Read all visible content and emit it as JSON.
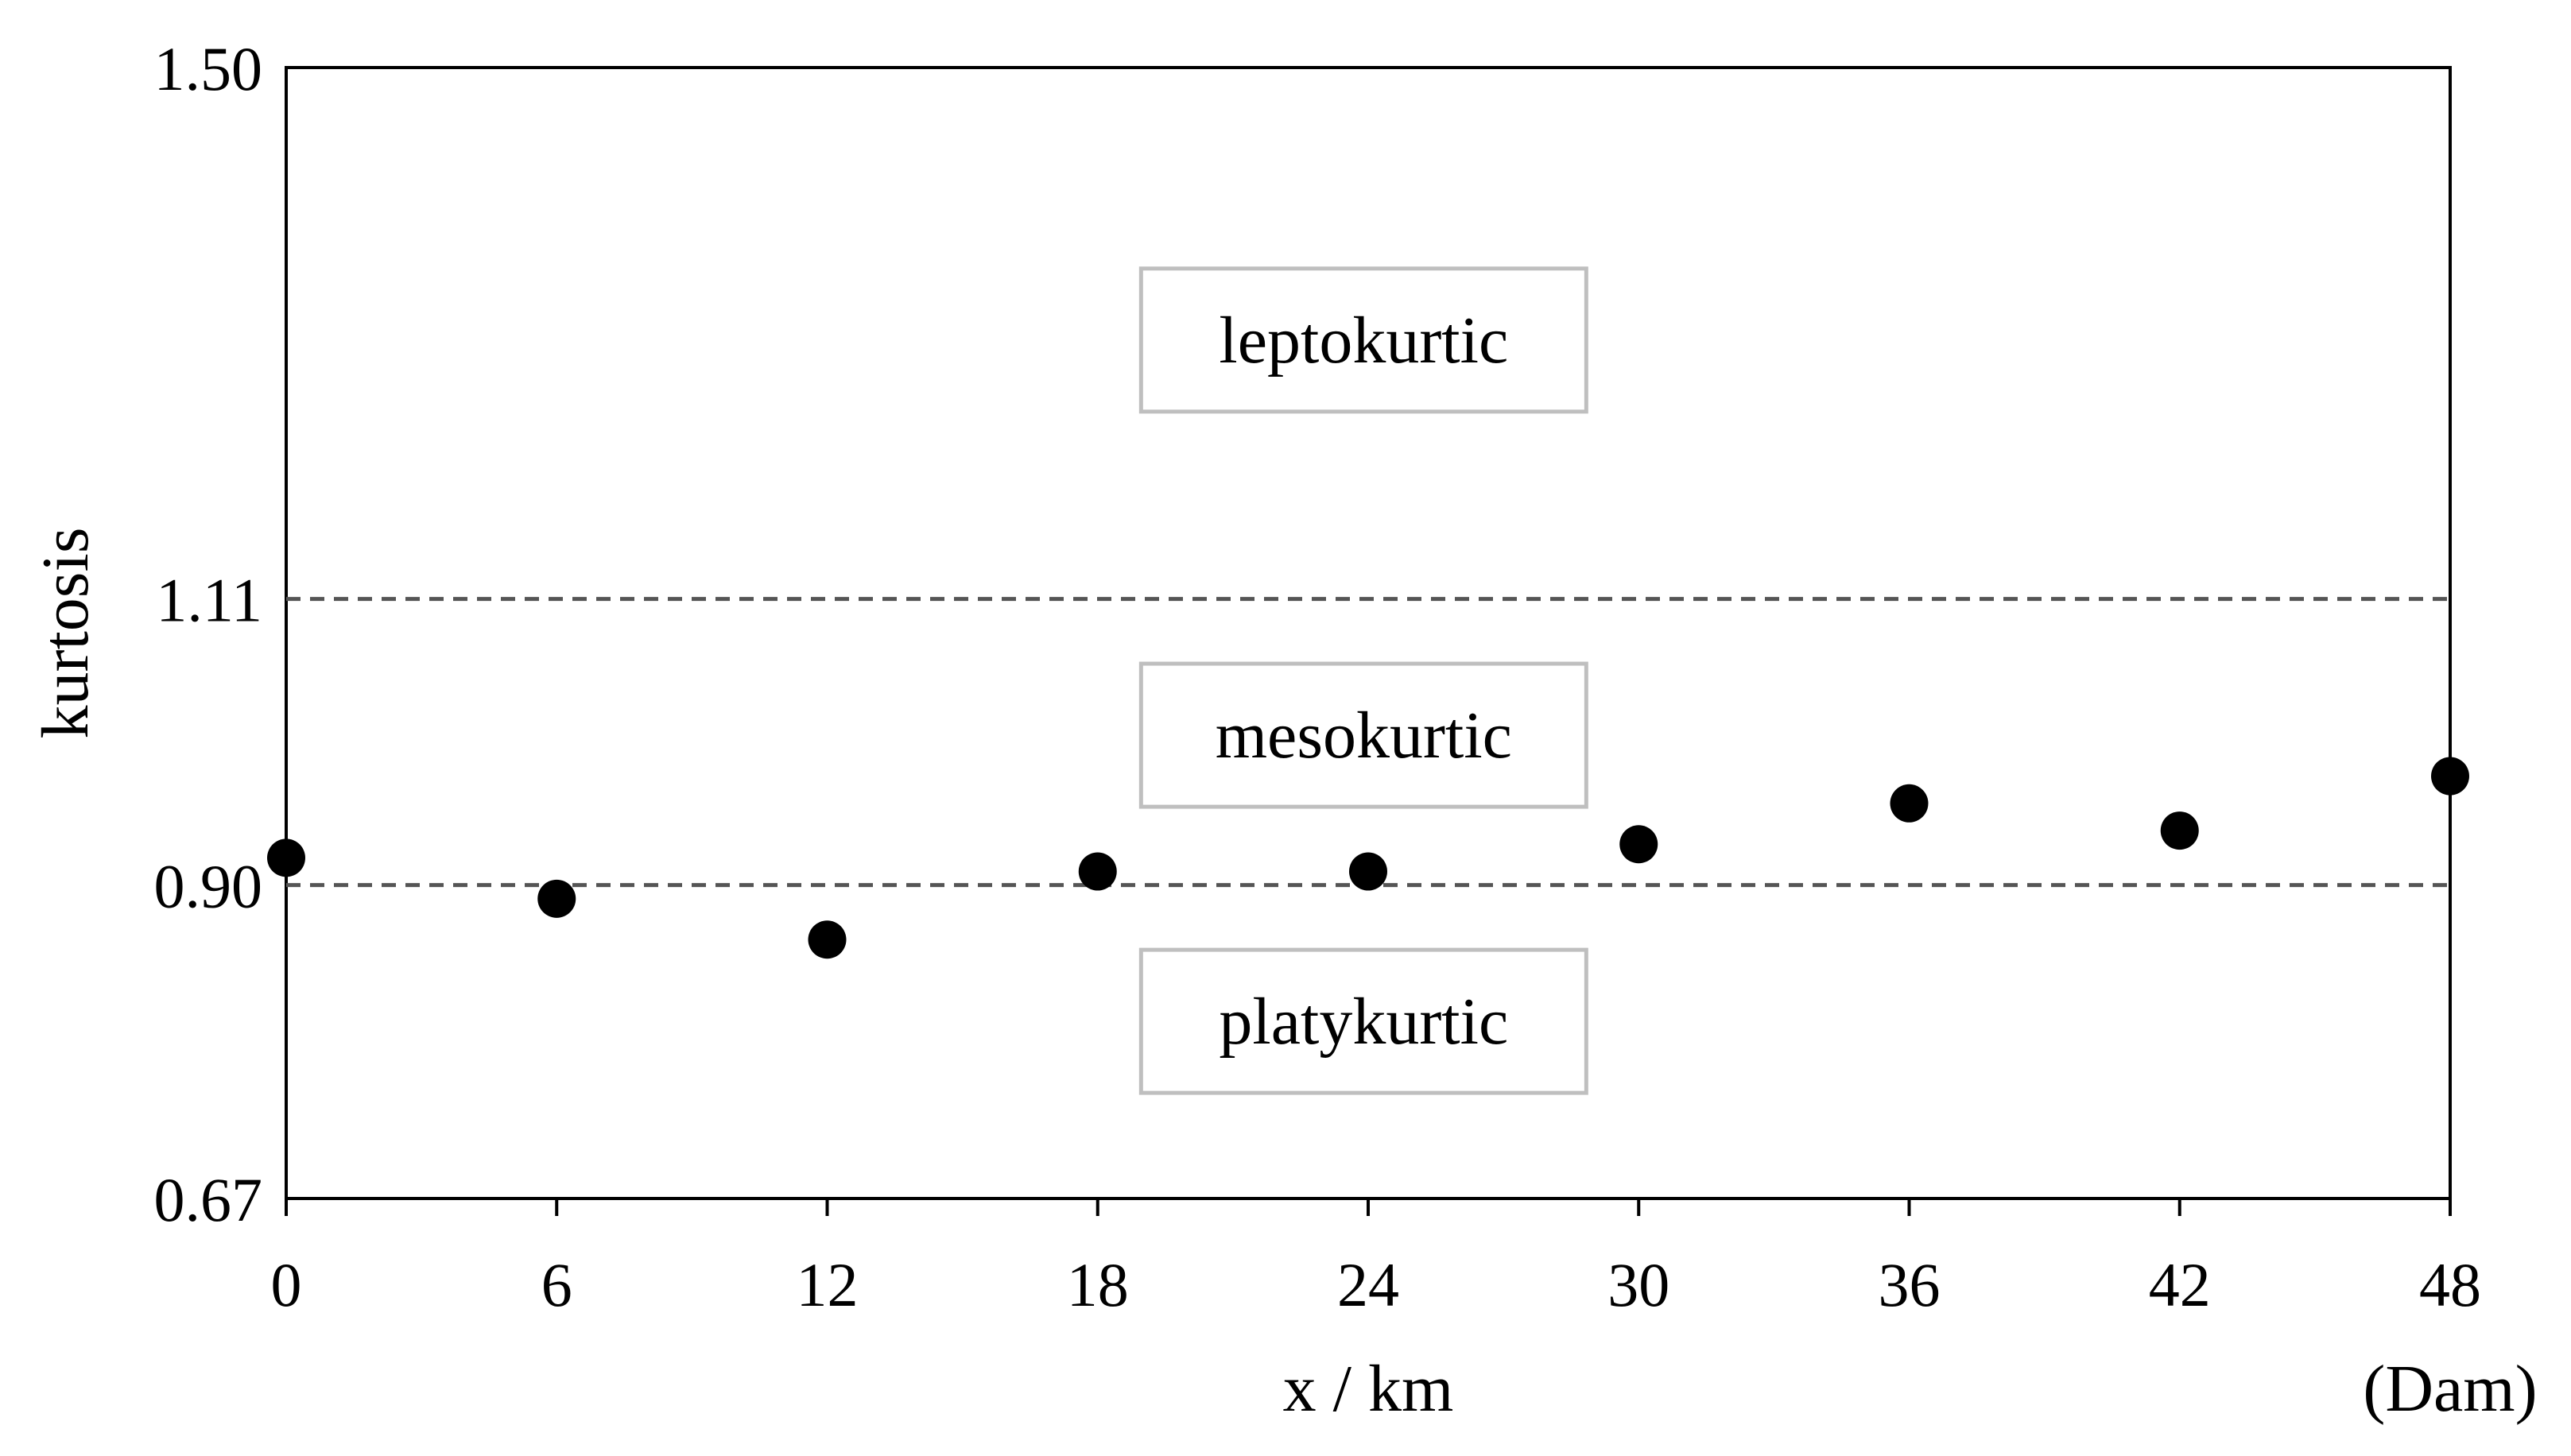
{
  "chart_data": {
    "type": "scatter",
    "xlabel": "x / km",
    "ylabel": "kurtosis",
    "x_note": "(Dam)",
    "xlim": [
      0,
      48
    ],
    "ylim": [
      0.67,
      1.5
    ],
    "x_ticks": [
      0,
      6,
      12,
      18,
      24,
      30,
      36,
      42,
      48
    ],
    "y_ticks": [
      {
        "value": 0.67,
        "label": "0.67"
      },
      {
        "value": 0.9,
        "label": "0.90"
      },
      {
        "value": 1.11,
        "label": "1.11"
      },
      {
        "value": 1.5,
        "label": "1.50"
      }
    ],
    "reference_lines": [
      {
        "y": 1.11,
        "style": "dashed"
      },
      {
        "y": 0.9,
        "style": "dashed"
      }
    ],
    "regions": [
      {
        "label": "leptokurtic",
        "y": 1.3
      },
      {
        "label": "mesokurtic",
        "y": 1.01
      },
      {
        "label": "platykurtic",
        "y": 0.8
      }
    ],
    "series": [
      {
        "x": [
          0,
          6,
          12,
          18,
          24,
          30,
          36,
          42,
          48
        ],
        "y": [
          0.92,
          0.89,
          0.86,
          0.91,
          0.91,
          0.93,
          0.96,
          0.94,
          0.98
        ]
      }
    ],
    "grid": false,
    "colors": {
      "marker": "#000000",
      "reference_line": "#555555",
      "region_border": "#bfbfbf",
      "axis": "#000000"
    }
  }
}
